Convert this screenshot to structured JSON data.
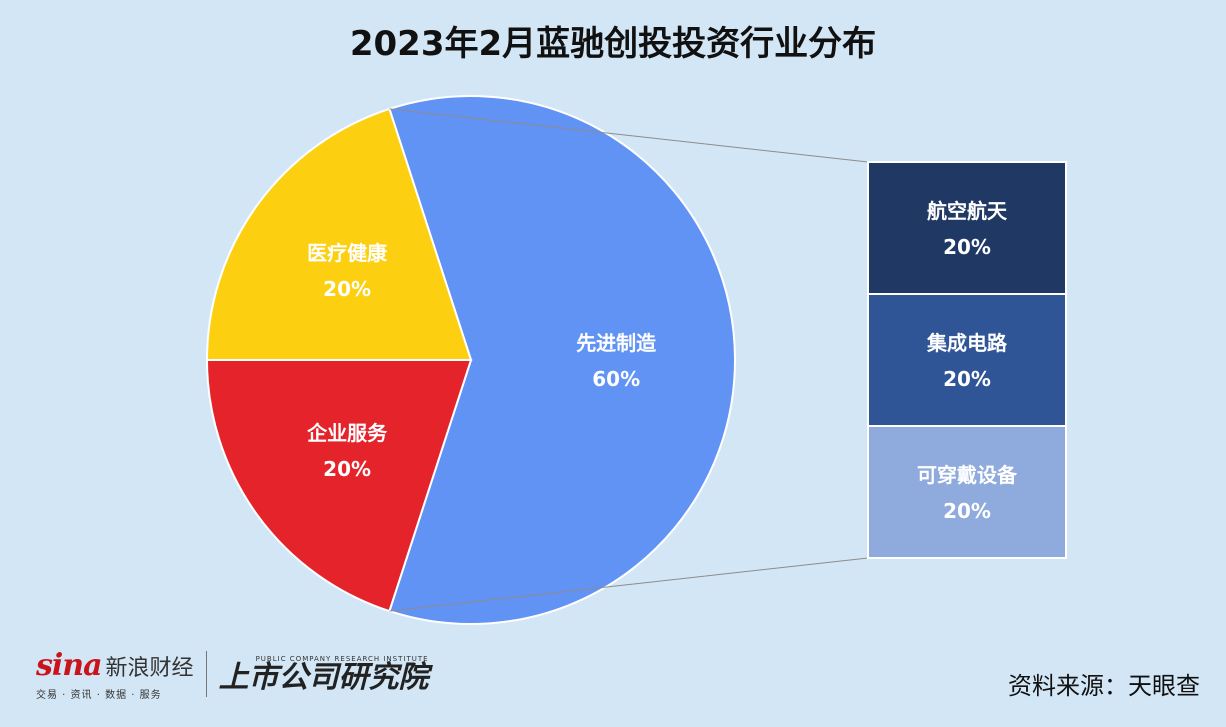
{
  "title": "2023年2月蓝驰创投投资行业分布",
  "chart_data": {
    "type": "pie",
    "subtype": "bar-of-pie",
    "title": "2023年2月蓝驰创投投资行业分布",
    "slices": [
      {
        "label": "先进制造",
        "value": 60,
        "display": "60%",
        "color": "#6193f5"
      },
      {
        "label": "企业服务",
        "value": 20,
        "display": "20%",
        "color": "#e5232a"
      },
      {
        "label": "医疗健康",
        "value": 20,
        "display": "20%",
        "color": "#fcd010"
      }
    ],
    "breakdown": {
      "of": "先进制造",
      "items": [
        {
          "label": "航空航天",
          "value": 20,
          "display": "20%",
          "color": "#1f3864"
        },
        {
          "label": "集成电路",
          "value": 20,
          "display": "20%",
          "color": "#2f5597"
        },
        {
          "label": "可穿戴设备",
          "value": 20,
          "display": "20%",
          "color": "#8faadc"
        }
      ]
    }
  },
  "footer": {
    "brand_mark": "sina",
    "brand_name": "新浪财经",
    "brand_sub": "交易 · 资讯 · 数据 · 服务",
    "institute_en": "PUBLIC COMPANY RESEARCH INSTITUTE",
    "institute_cn": "上市公司研究院",
    "source": "资料来源：天眼查"
  }
}
